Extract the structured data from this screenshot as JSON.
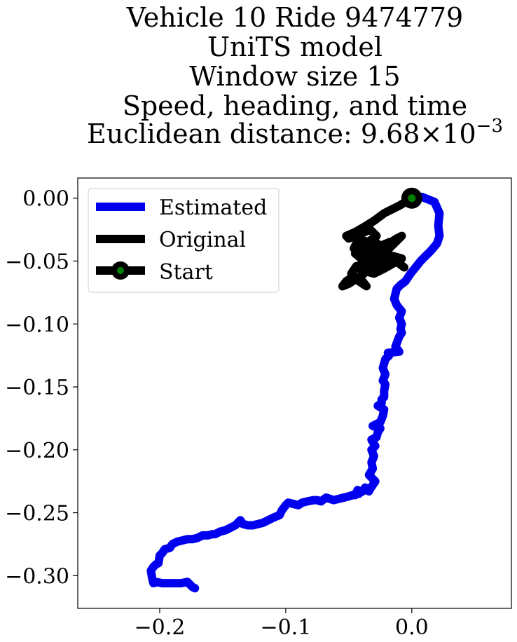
{
  "chart_data": {
    "type": "line",
    "title_lines": [
      "Vehicle 10 Ride 9474779",
      "UniTS model",
      "Window size 15",
      "Speed, heading, and time",
      "Euclidean distance: "
    ],
    "distance_mantissa": "9.68",
    "distance_times": "×",
    "distance_base": "10",
    "distance_exponent": "−3",
    "xlim": [
      -0.265,
      0.079
    ],
    "ylim": [
      -0.326,
      0.016
    ],
    "x_ticks": [
      -0.2,
      -0.1,
      0.0
    ],
    "x_tick_labels": [
      "−0.2",
      "−0.1",
      "0.0"
    ],
    "y_ticks": [
      0.0,
      -0.05,
      -0.1,
      -0.15,
      -0.2,
      -0.25,
      -0.3
    ],
    "y_tick_labels": [
      "0.00",
      "−0.05",
      "−0.10",
      "−0.15",
      "−0.20",
      "−0.25",
      "−0.30"
    ],
    "legend_position": "upper left",
    "legend": [
      "Estimated",
      "Original",
      "Start"
    ],
    "colors": {
      "estimated": "#0000ee",
      "original": "#000000",
      "start_marker": "#008000"
    },
    "series": [
      {
        "name": "Estimated",
        "color": "#0000ee",
        "x": [
          0.0,
          0.008,
          0.018,
          0.022,
          0.021,
          0.022,
          0.02,
          0.015,
          0.011,
          0.007,
          0.003,
          -0.001,
          -0.005,
          -0.009,
          -0.012,
          -0.014,
          -0.012,
          -0.008,
          -0.01,
          -0.008,
          -0.009,
          -0.008,
          -0.01,
          -0.013,
          -0.01,
          -0.019,
          -0.018,
          -0.021,
          -0.023,
          -0.021,
          -0.023,
          -0.021,
          -0.022,
          -0.022,
          -0.024,
          -0.024,
          -0.027,
          -0.022,
          -0.023,
          -0.025,
          -0.031,
          -0.025,
          -0.027,
          -0.028,
          -0.032,
          -0.029,
          -0.032,
          -0.03,
          -0.032,
          -0.031,
          -0.034,
          -0.029,
          -0.031,
          -0.033,
          -0.034,
          -0.036,
          -0.037,
          -0.039,
          -0.041,
          -0.042,
          -0.043,
          -0.045,
          -0.047,
          -0.05,
          -0.054,
          -0.058,
          -0.062,
          -0.068,
          -0.072,
          -0.075,
          -0.078,
          -0.083,
          -0.087,
          -0.09,
          -0.094,
          -0.098,
          -0.1,
          -0.103,
          -0.105,
          -0.11,
          -0.114,
          -0.118,
          -0.122,
          -0.126,
          -0.13,
          -0.134,
          -0.136,
          -0.138,
          -0.14,
          -0.144,
          -0.148,
          -0.152,
          -0.156,
          -0.158,
          -0.162,
          -0.166,
          -0.17,
          -0.174,
          -0.178,
          -0.182,
          -0.186,
          -0.19,
          -0.192,
          -0.196,
          -0.198,
          -0.2,
          -0.201,
          -0.203,
          -0.205,
          -0.207,
          -0.206,
          -0.205,
          -0.203,
          -0.198,
          -0.193,
          -0.188,
          -0.183,
          -0.178,
          -0.174,
          -0.172
        ],
        "y": [
          0.0,
          0.001,
          -0.003,
          -0.012,
          -0.022,
          -0.03,
          -0.036,
          -0.042,
          -0.046,
          -0.05,
          -0.055,
          -0.06,
          -0.066,
          -0.069,
          -0.072,
          -0.08,
          -0.085,
          -0.09,
          -0.095,
          -0.1,
          -0.104,
          -0.107,
          -0.11,
          -0.118,
          -0.122,
          -0.123,
          -0.125,
          -0.128,
          -0.135,
          -0.14,
          -0.145,
          -0.148,
          -0.153,
          -0.158,
          -0.16,
          -0.163,
          -0.165,
          -0.168,
          -0.173,
          -0.178,
          -0.181,
          -0.183,
          -0.186,
          -0.19,
          -0.192,
          -0.197,
          -0.2,
          -0.205,
          -0.21,
          -0.215,
          -0.22,
          -0.225,
          -0.228,
          -0.231,
          -0.233,
          -0.231,
          -0.23,
          -0.233,
          -0.234,
          -0.235,
          -0.232,
          -0.236,
          -0.236,
          -0.237,
          -0.238,
          -0.239,
          -0.24,
          -0.238,
          -0.241,
          -0.24,
          -0.24,
          -0.241,
          -0.242,
          -0.244,
          -0.243,
          -0.242,
          -0.244,
          -0.248,
          -0.252,
          -0.254,
          -0.256,
          -0.258,
          -0.259,
          -0.26,
          -0.26,
          -0.259,
          -0.256,
          -0.258,
          -0.26,
          -0.262,
          -0.264,
          -0.265,
          -0.267,
          -0.267,
          -0.268,
          -0.268,
          -0.27,
          -0.271,
          -0.271,
          -0.272,
          -0.273,
          -0.275,
          -0.278,
          -0.279,
          -0.282,
          -0.284,
          -0.29,
          -0.291,
          -0.293,
          -0.296,
          -0.302,
          -0.306,
          -0.305,
          -0.306,
          -0.306,
          -0.306,
          -0.306,
          -0.305,
          -0.309,
          -0.31
        ]
      },
      {
        "name": "Original",
        "color": "#000000",
        "x": [
          0.0,
          -0.01,
          -0.022,
          -0.03,
          -0.038,
          -0.045,
          -0.052,
          -0.05,
          -0.04,
          -0.033,
          -0.028,
          -0.035,
          -0.042,
          -0.046,
          -0.04,
          -0.032,
          -0.025,
          -0.018,
          -0.012,
          -0.022,
          -0.03,
          -0.038,
          -0.043,
          -0.038,
          -0.03,
          -0.022,
          -0.015,
          -0.008,
          -0.015,
          -0.022,
          -0.03,
          -0.037,
          -0.044,
          -0.048,
          -0.042,
          -0.036,
          -0.04,
          -0.046,
          -0.052,
          -0.055,
          -0.05,
          -0.044,
          -0.038,
          -0.042,
          -0.036,
          -0.03,
          -0.024,
          -0.018,
          -0.012,
          -0.008,
          -0.014,
          -0.02,
          -0.026,
          -0.034,
          -0.04,
          -0.045,
          -0.04,
          -0.035,
          -0.03,
          -0.025,
          -0.02,
          -0.015,
          -0.01,
          -0.006
        ],
        "y": [
          0.0,
          -0.006,
          -0.012,
          -0.018,
          -0.023,
          -0.027,
          -0.03,
          -0.032,
          -0.028,
          -0.025,
          -0.03,
          -0.035,
          -0.032,
          -0.04,
          -0.045,
          -0.042,
          -0.038,
          -0.035,
          -0.034,
          -0.04,
          -0.046,
          -0.05,
          -0.055,
          -0.058,
          -0.055,
          -0.05,
          -0.046,
          -0.048,
          -0.052,
          -0.056,
          -0.06,
          -0.058,
          -0.054,
          -0.06,
          -0.066,
          -0.07,
          -0.065,
          -0.062,
          -0.066,
          -0.07,
          -0.068,
          -0.064,
          -0.06,
          -0.055,
          -0.05,
          -0.045,
          -0.04,
          -0.036,
          -0.032,
          -0.03,
          -0.036,
          -0.042,
          -0.047,
          -0.05,
          -0.048,
          -0.044,
          -0.04,
          -0.037,
          -0.034,
          -0.038,
          -0.044,
          -0.048,
          -0.052,
          -0.055
        ]
      }
    ],
    "start_point": {
      "name": "Start",
      "x": 0.0,
      "y": 0.0
    }
  }
}
